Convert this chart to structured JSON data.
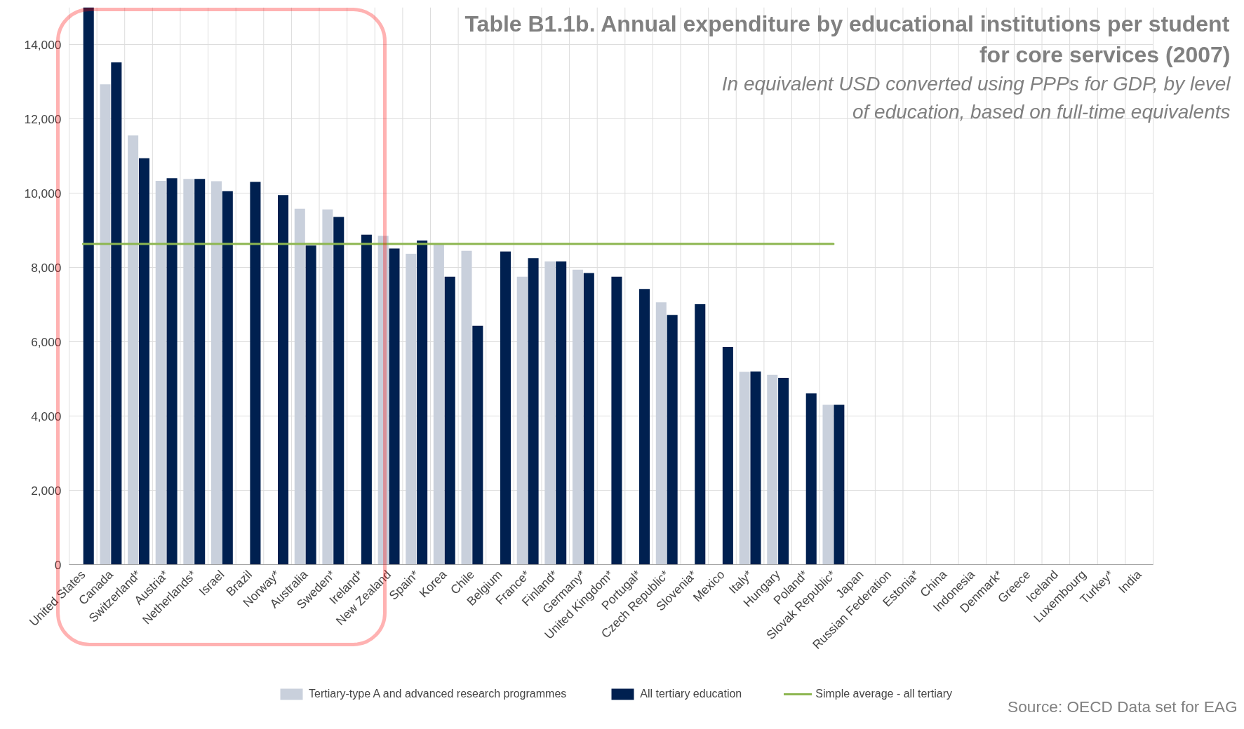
{
  "chart_data": {
    "type": "bar",
    "title": "Table B1.1b. Annual expenditure by educational institutions per student for core services (2007)",
    "subtitle": "In equivalent USD converted using PPPs for GDP, by level of education, based on full-time equivalents",
    "categories": [
      "United States",
      "Canada",
      "Switzerland*",
      "Austria*",
      "Netherlands*",
      "Israel",
      "Brazil",
      "Norway*",
      "Australia",
      "Sweden*",
      "Ireland*",
      "New Zealand",
      "Spain*",
      "Korea",
      "Chile",
      "Belgium",
      "France*",
      "Finland*",
      "Germany*",
      "United Kingdom*",
      "Portugal*",
      "Czech Republic*",
      "Slovenia*",
      "Mexico",
      "Italy*",
      "Hungary",
      "Poland*",
      "Slovak Republic*",
      "Japan",
      "Russian Federation",
      "Estonia*",
      "China",
      "Indonesia",
      "Denmark*",
      "Greece",
      "Iceland",
      "Luxembourg",
      "Turkey*",
      "India"
    ],
    "series": [
      {
        "name": "Tertiary-type A and advanced research programmes",
        "color": "#c9d0dc",
        "values": [
          null,
          12930,
          11550,
          10330,
          10380,
          10320,
          null,
          null,
          9580,
          9560,
          null,
          8850,
          8370,
          8620,
          8450,
          null,
          7750,
          8160,
          7940,
          null,
          null,
          7060,
          null,
          null,
          5190,
          5110,
          null,
          4300,
          null,
          null,
          null,
          null,
          null,
          null,
          null,
          null,
          null,
          null,
          null
        ]
      },
      {
        "name": "All tertiary education",
        "color": "#002050",
        "values": [
          15000,
          13520,
          10940,
          10400,
          10380,
          10050,
          10300,
          9950,
          8590,
          9360,
          8880,
          8510,
          8720,
          7750,
          6430,
          8430,
          8250,
          8160,
          7850,
          7750,
          7420,
          6720,
          7010,
          5860,
          5200,
          5030,
          4610,
          4300,
          null,
          null,
          null,
          null,
          null,
          null,
          null,
          null,
          null,
          null,
          null
        ]
      },
      {
        "name": "Simple average - all tertiary",
        "type": "line",
        "color": "#8db650",
        "values": [
          8630,
          8630,
          8630,
          8630,
          8630,
          8630,
          8630,
          8630,
          8630,
          8630,
          8630,
          8630,
          8630,
          8630,
          8630,
          8630,
          8630,
          8630,
          8630,
          8630,
          8630,
          8630,
          8630,
          8630,
          8630,
          8630,
          8630,
          8630,
          null,
          null,
          null,
          null,
          null,
          null,
          null,
          null,
          null,
          null,
          null
        ]
      }
    ],
    "ylim": [
      0,
      15000
    ],
    "yticks": [
      0,
      {
        "value": 2000,
        "label": "2,000"
      },
      {
        "value": 4000,
        "label": "4,000"
      },
      {
        "value": 6000,
        "label": "6,000"
      },
      {
        "value": 8000,
        "label": "8,000"
      },
      {
        "value": 10000,
        "label": "10,000"
      },
      {
        "value": 12000,
        "label": "12,000"
      },
      {
        "value": 14000,
        "label": "14,000"
      }
    ],
    "grid": true,
    "legend": "bottom",
    "annotations": [
      "Source: OECD Data set for EAG"
    ]
  }
}
